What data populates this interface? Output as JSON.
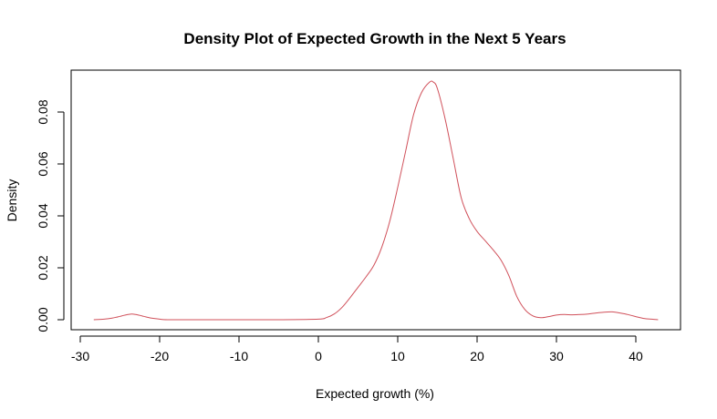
{
  "chart_data": {
    "type": "line",
    "title": "Density Plot of Expected Growth in the Next 5 Years",
    "xlabel": "Expected growth (%)",
    "ylabel": "Density",
    "xlim": [
      -30,
      43
    ],
    "ylim": [
      0,
      0.09
    ],
    "x_ticks": [
      -30,
      -20,
      -10,
      0,
      10,
      20,
      30,
      40
    ],
    "x_tick_labels": [
      "-30",
      "-20",
      "-10",
      "0",
      "10",
      "20",
      "30",
      "40"
    ],
    "y_ticks": [
      0,
      0.02,
      0.04,
      0.06,
      0.08
    ],
    "y_tick_labels": [
      "0.00",
      "0.02",
      "0.04",
      "0.06",
      "0.08"
    ],
    "grid": false,
    "series": [
      {
        "color": "#d0505a",
        "x": [
          -28.3,
          -27,
          -26,
          -25,
          -24,
          -23.5,
          -23,
          -22,
          -21,
          -20,
          -19,
          -15,
          -10,
          -5,
          0,
          1,
          2,
          3,
          4,
          5,
          6,
          7,
          8,
          9,
          10,
          11,
          12,
          13,
          14,
          14.5,
          15,
          16,
          17,
          18,
          19,
          20,
          21,
          22,
          23,
          24,
          25,
          26,
          27,
          28,
          29,
          30,
          31,
          32,
          33,
          34,
          35,
          36,
          37,
          38,
          39,
          40,
          41,
          42,
          42.8
        ],
        "y": [
          0.0,
          0.0002,
          0.0006,
          0.0013,
          0.002,
          0.0022,
          0.002,
          0.0013,
          0.0006,
          0.0002,
          0.0,
          0.0,
          0.0,
          0.0,
          0.0002,
          0.0008,
          0.0022,
          0.0048,
          0.0085,
          0.0125,
          0.0165,
          0.021,
          0.028,
          0.038,
          0.051,
          0.065,
          0.079,
          0.0875,
          0.0915,
          0.0915,
          0.089,
          0.077,
          0.062,
          0.047,
          0.039,
          0.034,
          0.0305,
          0.027,
          0.023,
          0.017,
          0.009,
          0.004,
          0.0015,
          0.0008,
          0.0012,
          0.0018,
          0.002,
          0.0019,
          0.002,
          0.0022,
          0.0026,
          0.0029,
          0.003,
          0.0026,
          0.002,
          0.0012,
          0.0005,
          0.0002,
          0.0
        ]
      }
    ]
  }
}
